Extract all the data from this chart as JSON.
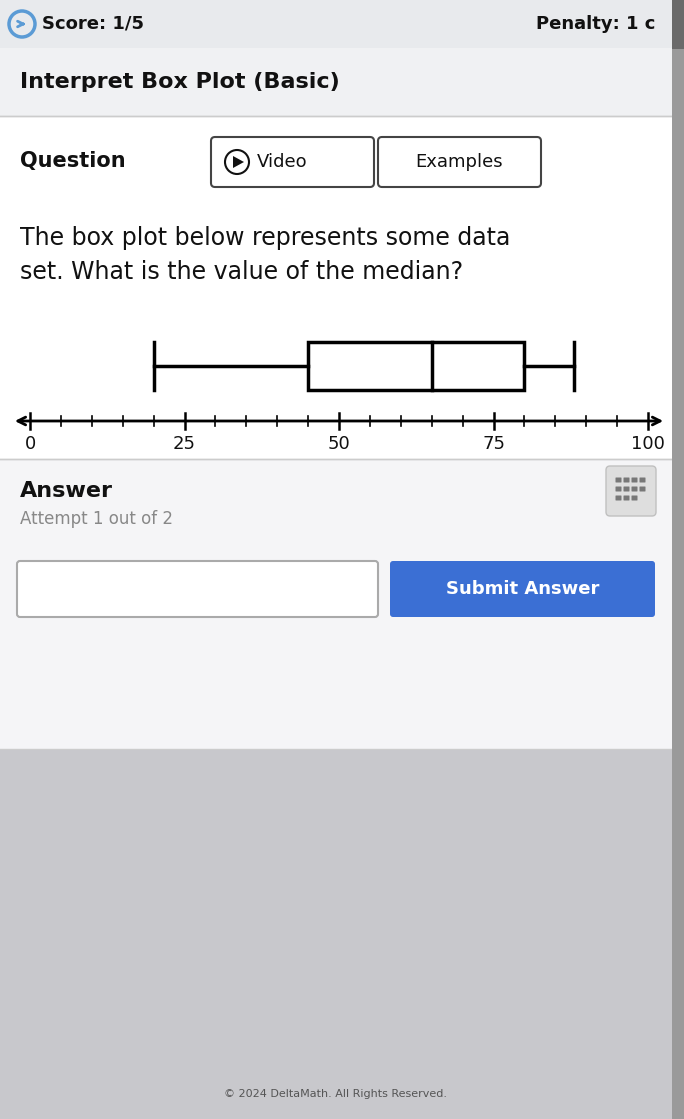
{
  "score_text": "Score: 1/5",
  "penalty_text": "Penalty: 1 c",
  "title": "Interpret Box Plot (Basic)",
  "question_label": "Question",
  "video_button": "▶  Video",
  "examples_button": "Examples",
  "question_text_line1": "The box plot below represents some data",
  "question_text_line2": "set. What is the value of the median?",
  "answer_label": "Answer",
  "attempt_text": "Attempt 1 out of 2",
  "submit_button": "Submit Answer",
  "box_plot": {
    "whisker_min": 20,
    "q1": 45,
    "median": 65,
    "q3": 80,
    "whisker_max": 88,
    "axis_min": 0,
    "axis_max": 100,
    "axis_ticks": [
      0,
      25,
      50,
      75,
      100
    ]
  },
  "bg_top": "#e8eaed",
  "bg_section": "#f0f1f3",
  "white": "#ffffff",
  "dark_text": "#111111",
  "gray_text": "#888888",
  "blue_button": "#3b6fd4",
  "border_color": "#cccccc",
  "scrollbar_color": "#9a9a9a",
  "answer_bg": "#f5f5f7"
}
